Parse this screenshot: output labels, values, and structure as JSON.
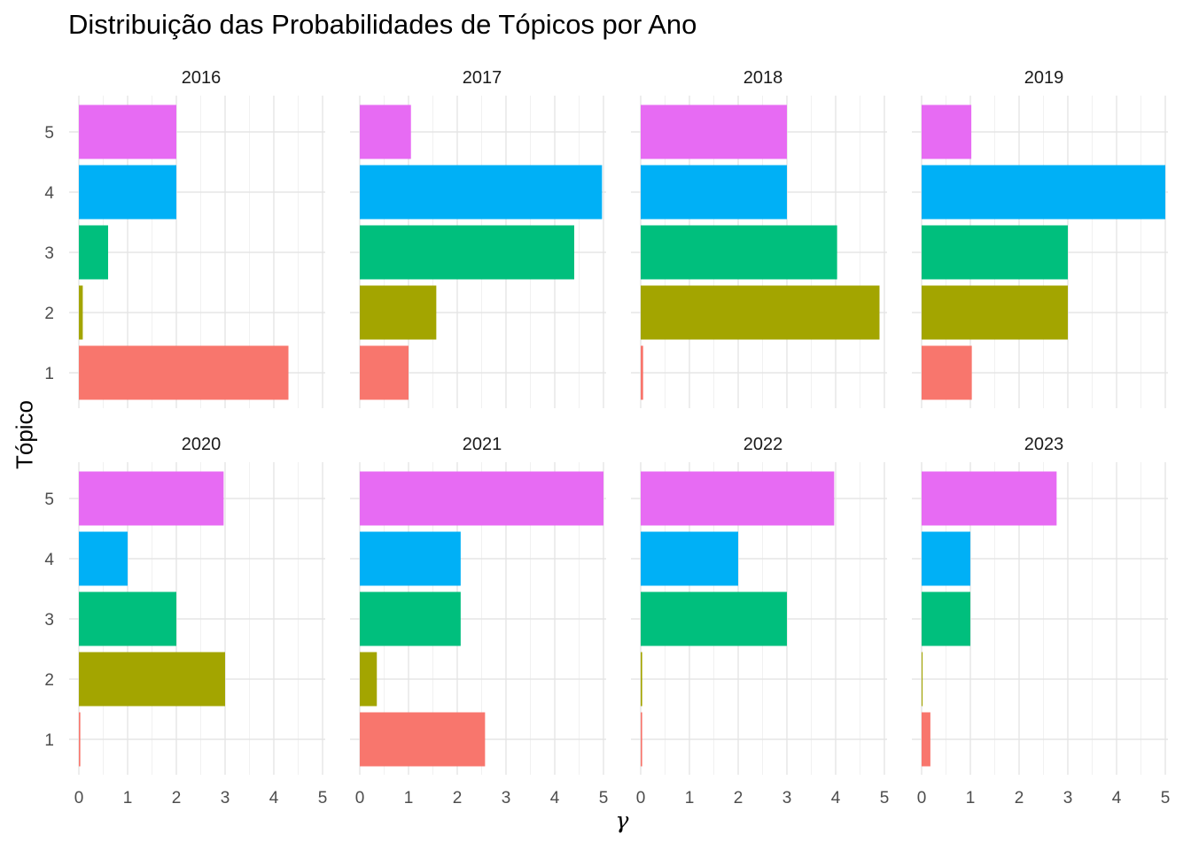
{
  "chart_data": {
    "type": "bar",
    "orientation": "horizontal",
    "facet_layout": "2 rows x 4 columns",
    "title": "Distribuição das Probabilidades de Tópicos por Ano",
    "xlabel": "γ",
    "ylabel": "Tópico",
    "xlim": [
      0,
      5
    ],
    "x_ticks": [
      "0",
      "1",
      "2",
      "3",
      "4",
      "5"
    ],
    "categories": [
      "1",
      "2",
      "3",
      "4",
      "5"
    ],
    "colors": [
      "#F8766D",
      "#A3A500",
      "#00BF7D",
      "#00B0F6",
      "#E76BF3"
    ],
    "grid": true,
    "legend": "none",
    "facets": [
      {
        "label": "2016",
        "values": [
          4.3,
          0.08,
          0.6,
          2.0,
          2.0
        ]
      },
      {
        "label": "2017",
        "values": [
          1.0,
          1.57,
          4.4,
          4.97,
          1.05
        ]
      },
      {
        "label": "2018",
        "values": [
          0.05,
          4.9,
          4.03,
          3.0,
          3.0
        ]
      },
      {
        "label": "2019",
        "values": [
          1.03,
          3.0,
          3.0,
          5.0,
          1.02
        ]
      },
      {
        "label": "2020",
        "values": [
          0.03,
          3.0,
          2.0,
          1.0,
          2.97
        ]
      },
      {
        "label": "2021",
        "values": [
          2.57,
          0.35,
          2.07,
          2.07,
          5.0
        ]
      },
      {
        "label": "2022",
        "values": [
          0.03,
          0.03,
          3.0,
          2.0,
          3.97
        ]
      },
      {
        "label": "2023",
        "values": [
          0.18,
          0.02,
          1.0,
          1.0,
          2.77
        ]
      }
    ]
  }
}
